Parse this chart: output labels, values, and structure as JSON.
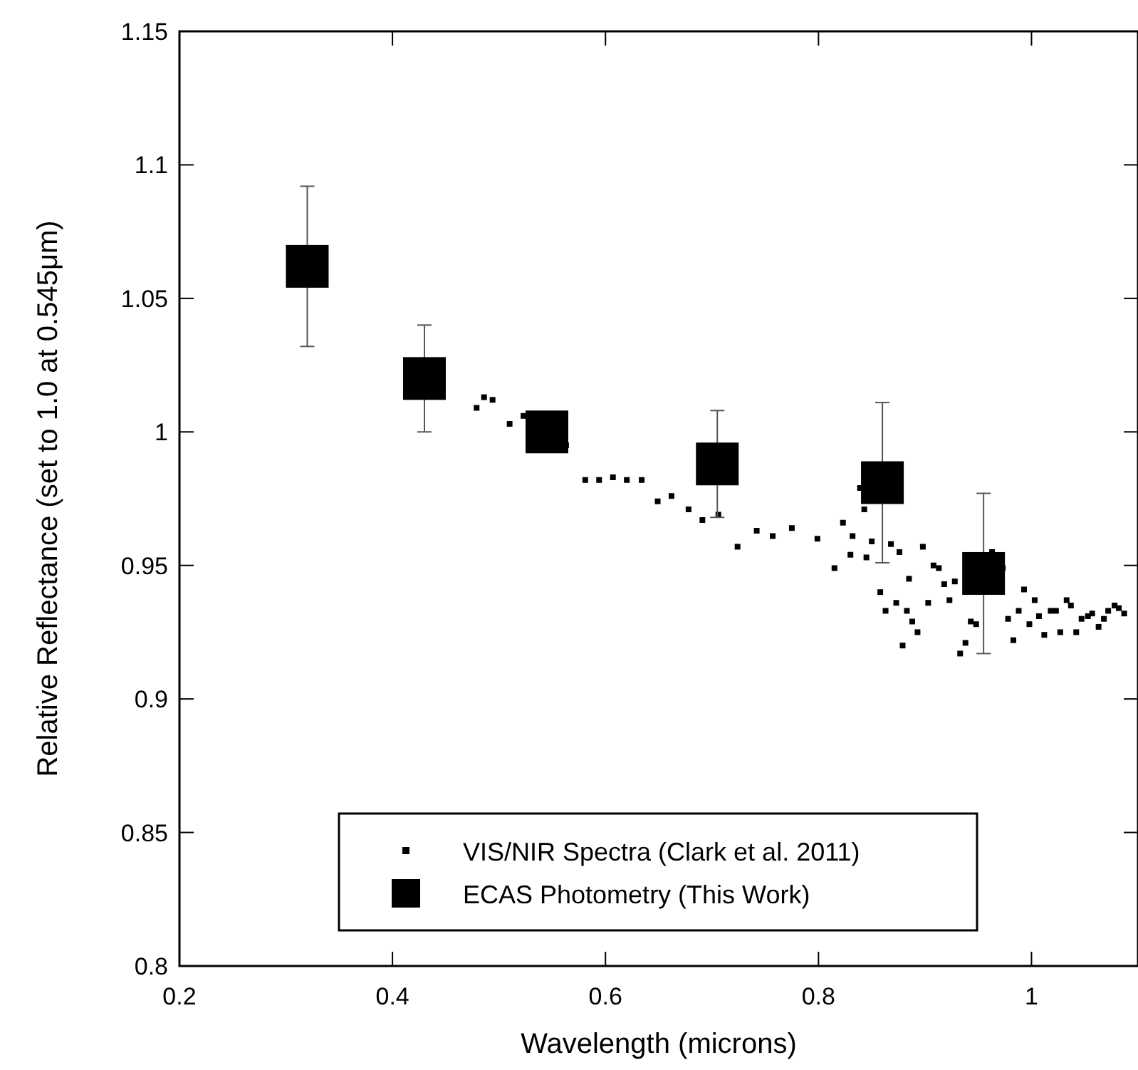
{
  "chart_data": {
    "type": "scatter",
    "xlabel": "Wavelength (microns)",
    "ylabel": "Relative Reflectance (set to 1.0 at 0.545μm)",
    "xlim": [
      0.2,
      1.1
    ],
    "xticks": [
      0.2,
      0.4,
      0.6,
      0.8,
      1
    ],
    "ylim": [
      0.8,
      1.15
    ],
    "yticks": [
      0.8,
      0.85,
      0.9,
      0.95,
      1,
      1.05,
      1.1,
      1.15
    ],
    "legend": "bottom",
    "marker": "square",
    "grid": false,
    "series": [
      {
        "name": "VIS/NIR Spectra (Clark et al. 2011)",
        "color": "#000000",
        "x": [
          0.479,
          0.486,
          0.494,
          0.51,
          0.523,
          0.563,
          0.581,
          0.594,
          0.607,
          0.62,
          0.634,
          0.649,
          0.662,
          0.678,
          0.691,
          0.706,
          0.724,
          0.742,
          0.757,
          0.775,
          0.799,
          0.815,
          0.83,
          0.845,
          0.85,
          0.868,
          0.876,
          0.885,
          0.903,
          0.918,
          0.839,
          0.843,
          0.823,
          0.832,
          0.858,
          0.863,
          0.873,
          0.879,
          0.883,
          0.888,
          0.893,
          0.898,
          0.908,
          0.913,
          0.923,
          0.928,
          0.933,
          0.938,
          0.943,
          0.948,
          0.963,
          0.973,
          0.978,
          0.983,
          0.988,
          0.993,
          0.998,
          1.003,
          1.007,
          1.012,
          1.018,
          1.023,
          1.027,
          1.033,
          1.037,
          1.042,
          1.047,
          1.053,
          1.057,
          1.063,
          1.068,
          1.072,
          1.078,
          1.082,
          1.087
        ],
        "values": [
          1.009,
          1.013,
          1.012,
          1.003,
          1.006,
          0.995,
          0.982,
          0.982,
          0.983,
          0.982,
          0.982,
          0.974,
          0.976,
          0.971,
          0.967,
          0.969,
          0.957,
          0.963,
          0.961,
          0.964,
          0.96,
          0.949,
          0.954,
          0.953,
          0.959,
          0.958,
          0.955,
          0.945,
          0.936,
          0.943,
          0.979,
          0.971,
          0.966,
          0.961,
          0.94,
          0.933,
          0.936,
          0.92,
          0.933,
          0.929,
          0.925,
          0.957,
          0.95,
          0.949,
          0.937,
          0.944,
          0.917,
          0.921,
          0.929,
          0.928,
          0.955,
          0.949,
          0.93,
          0.922,
          0.933,
          0.941,
          0.928,
          0.937,
          0.931,
          0.924,
          0.933,
          0.933,
          0.925,
          0.937,
          0.935,
          0.925,
          0.93,
          0.931,
          0.932,
          0.927,
          0.93,
          0.933,
          0.935,
          0.934,
          0.932
        ]
      },
      {
        "name": "ECAS Photometry (This Work)",
        "color": "#000000",
        "x": [
          0.32,
          0.43,
          0.545,
          0.705,
          0.86,
          0.955
        ],
        "values": [
          1.062,
          1.02,
          1.0,
          0.988,
          0.981,
          0.947
        ],
        "errors": [
          0.03,
          0.02,
          null,
          0.02,
          0.03,
          0.03
        ]
      }
    ]
  }
}
